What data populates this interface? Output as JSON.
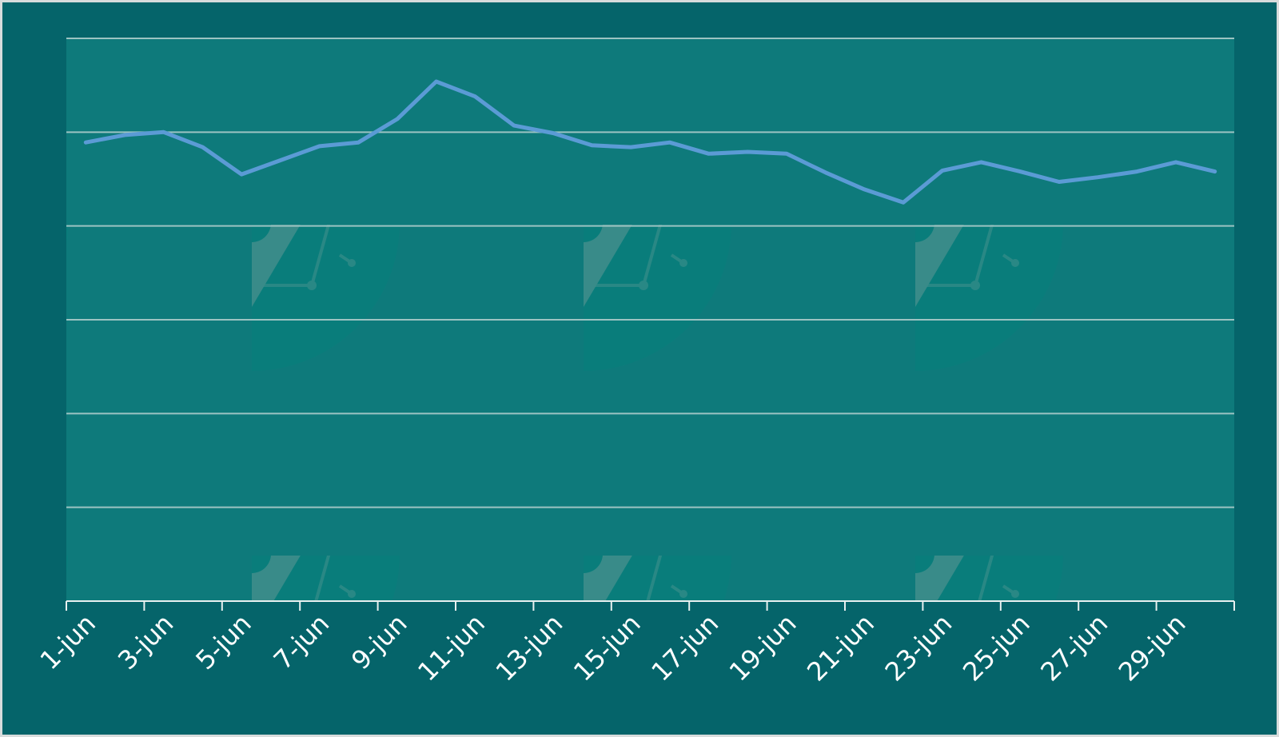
{
  "chart_data": {
    "type": "line",
    "title": "",
    "xlabel": "",
    "ylabel": "",
    "x": [
      "1-jun",
      "2-jun",
      "3-jun",
      "4-jun",
      "5-jun",
      "6-jun",
      "7-jun",
      "8-jun",
      "9-jun",
      "10-jun",
      "11-jun",
      "12-jun",
      "13-jun",
      "14-jun",
      "15-jun",
      "16-jun",
      "17-jun",
      "18-jun",
      "19-jun",
      "20-jun",
      "21-jun",
      "22-jun",
      "23-jun",
      "24-jun",
      "25-jun",
      "26-jun",
      "27-jun",
      "28-jun",
      "29-jun",
      "30-jun"
    ],
    "x_tick_labels": [
      "1-jun",
      "3-jun",
      "5-jun",
      "7-jun",
      "9-jun",
      "11-jun",
      "13-jun",
      "15-jun",
      "17-jun",
      "19-jun",
      "21-jun",
      "23-jun",
      "25-jun",
      "27-jun",
      "29-jun"
    ],
    "series": [
      {
        "values": [
          4.89,
          4.97,
          5.0,
          4.84,
          4.55,
          4.7,
          4.85,
          4.89,
          5.14,
          5.54,
          5.38,
          5.07,
          4.99,
          4.86,
          4.84,
          4.89,
          4.77,
          4.79,
          4.77,
          4.57,
          4.39,
          4.25,
          4.59,
          4.68,
          4.58,
          4.47,
          4.52,
          4.58,
          4.68,
          4.58
        ]
      }
    ],
    "ylim": [
      0,
      6
    ],
    "grid": true,
    "legend": "none",
    "colors": {
      "line": "#5b9bd5",
      "background": "#05646a",
      "plot_area": "#0e7a7b",
      "grid": "#9cc3c2",
      "text": "#ffffff"
    }
  }
}
